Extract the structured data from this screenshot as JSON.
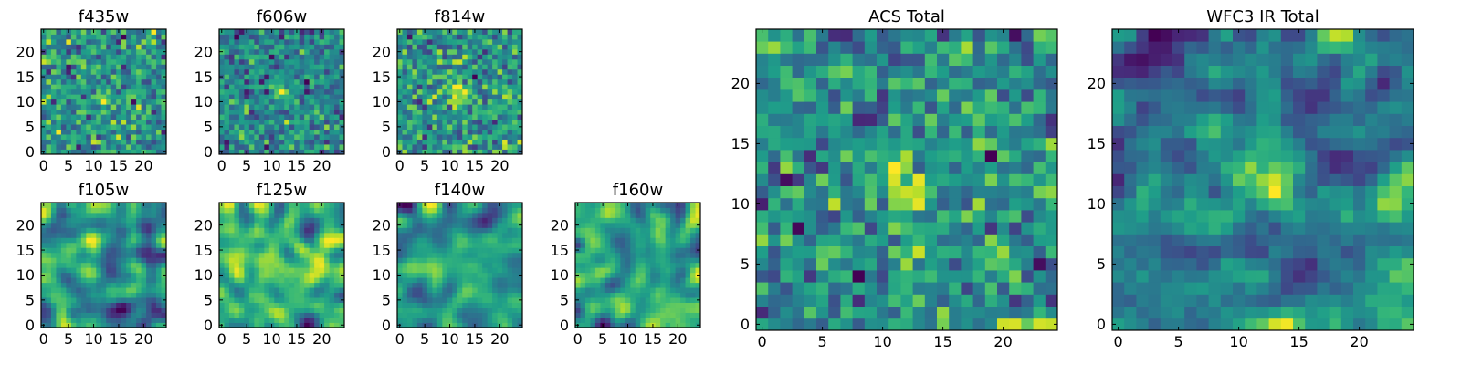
{
  "chart_data": [
    {
      "type": "heatmap",
      "title": "f435w",
      "grid_size": 25,
      "xlim": [
        -0.5,
        24.5
      ],
      "ylim": [
        -0.5,
        24.5
      ],
      "x_ticks": [
        0,
        5,
        10,
        15,
        20
      ],
      "y_ticks": [
        0,
        5,
        10,
        15,
        20
      ],
      "colormap": "viridis",
      "feature": "noise with a faint bright source near (12,11)"
    },
    {
      "type": "heatmap",
      "title": "f606w",
      "grid_size": 25,
      "xlim": [
        -0.5,
        24.5
      ],
      "ylim": [
        -0.5,
        24.5
      ],
      "x_ticks": [
        0,
        5,
        10,
        15,
        20
      ],
      "y_ticks": [
        0,
        5,
        10,
        15,
        20
      ],
      "colormap": "viridis",
      "feature": "noise with a bright source near (12,12)"
    },
    {
      "type": "heatmap",
      "title": "f814w",
      "grid_size": 25,
      "xlim": [
        -0.5,
        24.5
      ],
      "ylim": [
        -0.5,
        24.5
      ],
      "x_ticks": [
        0,
        5,
        10,
        15,
        20
      ],
      "y_ticks": [
        0,
        5,
        10,
        15,
        20
      ],
      "colormap": "viridis",
      "feature": "noise with a bright source near (12,12)"
    },
    {
      "type": "heatmap",
      "title": "f105w",
      "grid_size": 25,
      "xlim": [
        -0.5,
        24.5
      ],
      "ylim": [
        -0.5,
        24.5
      ],
      "x_ticks": [
        0,
        5,
        10,
        15,
        20
      ],
      "y_ticks": [
        0,
        5,
        10,
        15,
        20
      ],
      "colormap": "viridis",
      "feature": "smooth correlated noise"
    },
    {
      "type": "heatmap",
      "title": "f125w",
      "grid_size": 25,
      "xlim": [
        -0.5,
        24.5
      ],
      "ylim": [
        -0.5,
        24.5
      ],
      "x_ticks": [
        0,
        5,
        10,
        15,
        20
      ],
      "y_ticks": [
        0,
        5,
        10,
        15,
        20
      ],
      "colormap": "viridis",
      "feature": "smooth correlated noise"
    },
    {
      "type": "heatmap",
      "title": "f140w",
      "grid_size": 25,
      "xlim": [
        -0.5,
        24.5
      ],
      "ylim": [
        -0.5,
        24.5
      ],
      "x_ticks": [
        0,
        5,
        10,
        15,
        20
      ],
      "y_ticks": [
        0,
        5,
        10,
        15,
        20
      ],
      "colormap": "viridis",
      "feature": "smooth correlated noise"
    },
    {
      "type": "heatmap",
      "title": "f160w",
      "grid_size": 25,
      "xlim": [
        -0.5,
        24.5
      ],
      "ylim": [
        -0.5,
        24.5
      ],
      "x_ticks": [
        0,
        5,
        10,
        15,
        20
      ],
      "y_ticks": [
        0,
        5,
        10,
        15,
        20
      ],
      "colormap": "viridis",
      "feature": "smooth correlated noise with a source near (12,11)"
    },
    {
      "type": "heatmap",
      "title": "ACS Total",
      "grid_size": 25,
      "xlim": [
        -0.5,
        24.5
      ],
      "ylim": [
        -0.5,
        24.5
      ],
      "x_ticks": [
        0,
        5,
        10,
        15,
        20
      ],
      "y_ticks": [
        0,
        5,
        10,
        15,
        20
      ],
      "colormap": "viridis",
      "feature": "bright source near (12,11)"
    },
    {
      "type": "heatmap",
      "title": "WFC3 IR Total",
      "grid_size": 25,
      "xlim": [
        -0.5,
        24.5
      ],
      "ylim": [
        -0.5,
        24.5
      ],
      "x_ticks": [
        0,
        5,
        10,
        15,
        20
      ],
      "y_ticks": [
        0,
        5,
        10,
        15,
        20
      ],
      "colormap": "viridis",
      "feature": "broad bright source near (12,12)"
    }
  ]
}
